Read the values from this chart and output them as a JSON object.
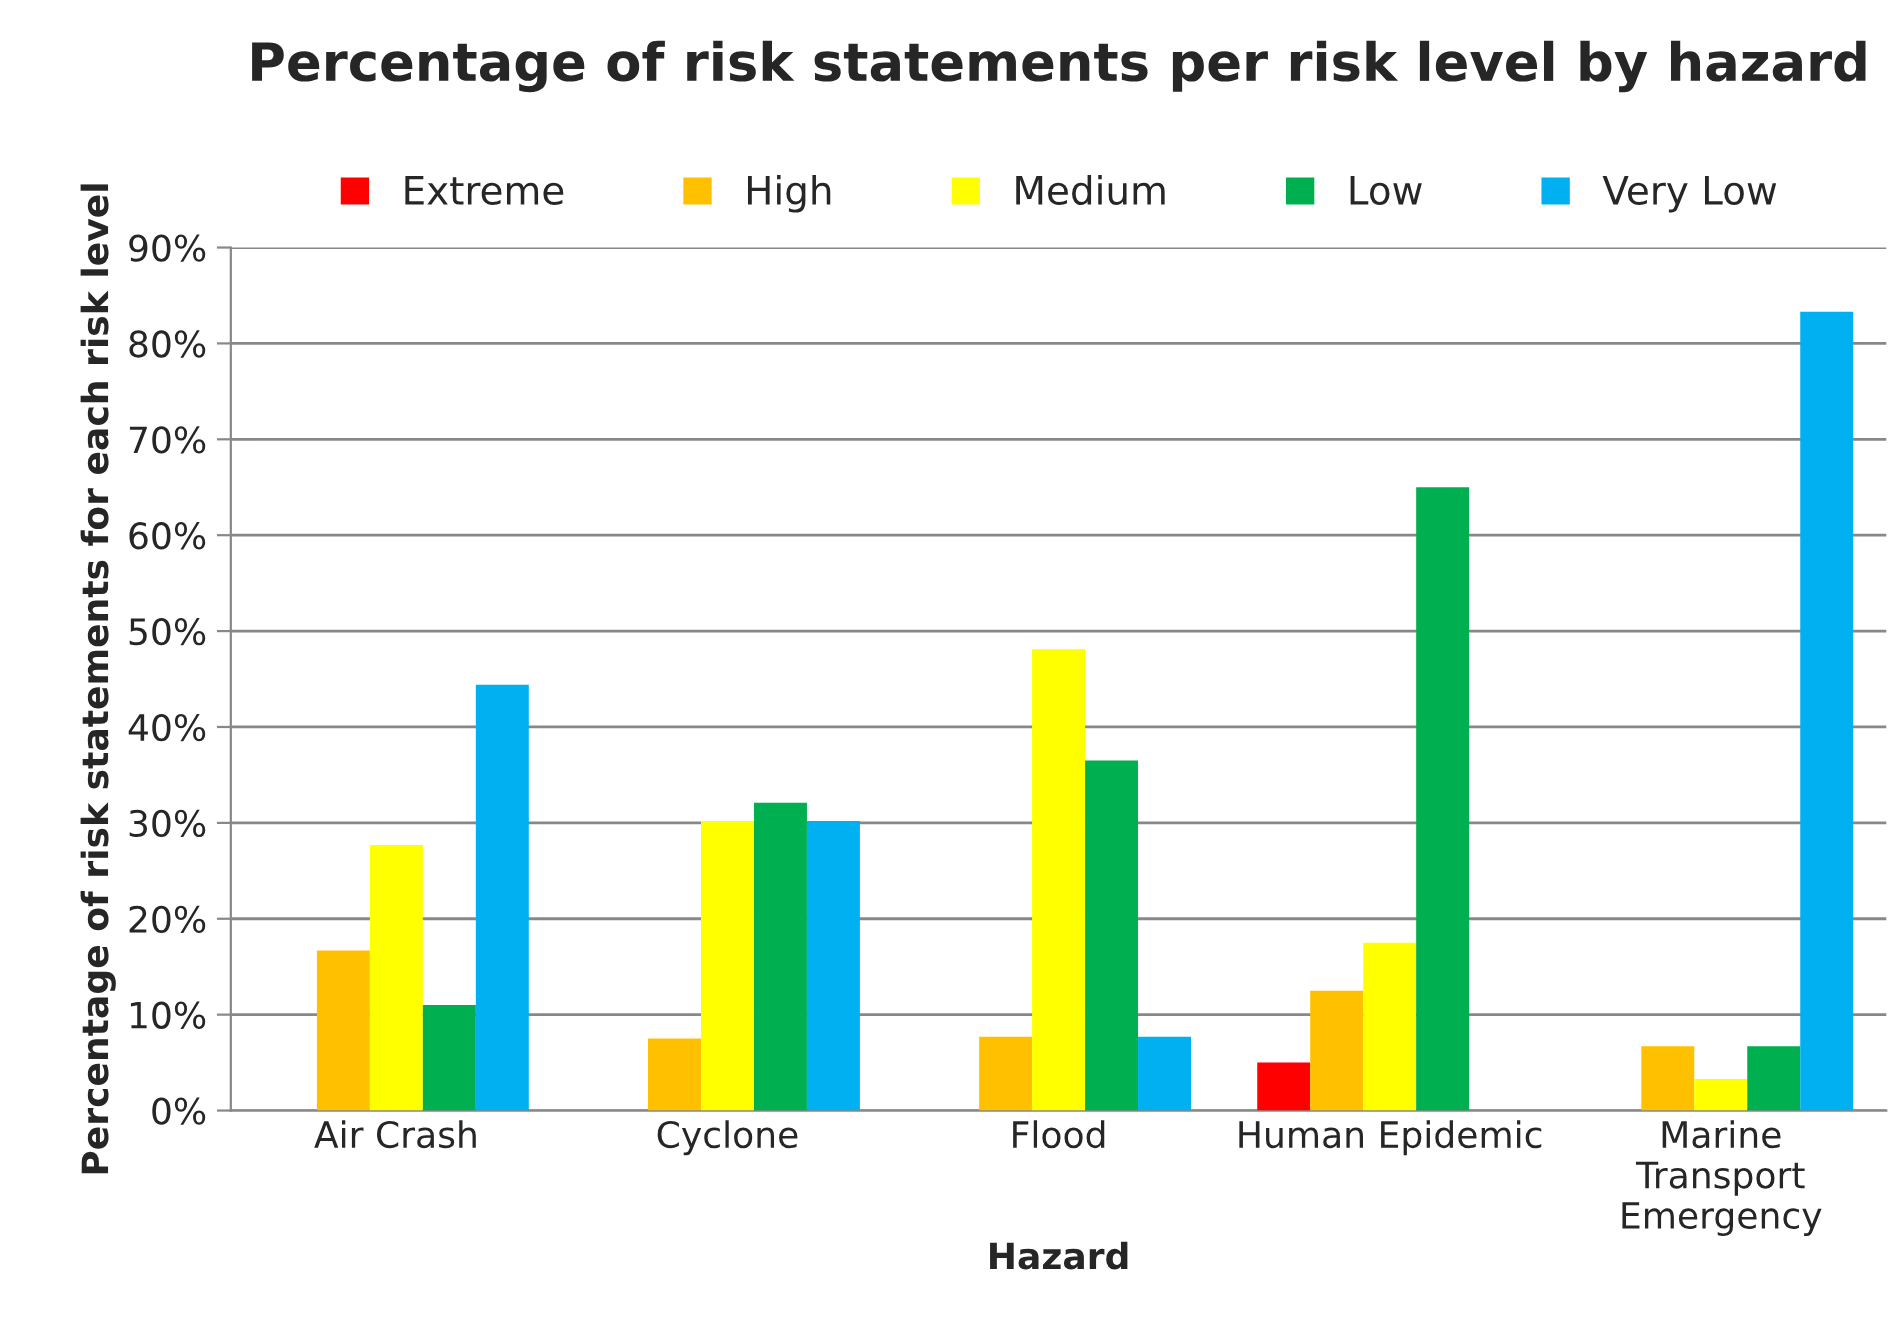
{
  "chart_data": {
    "type": "bar",
    "title": "Percentage of risk statements per risk level by hazard",
    "xlabel": "Hazard",
    "ylabel": "Percentage of risk statements for each risk level",
    "categories": [
      "Air Crash",
      "Cyclone",
      "Flood",
      "Human Epidemic",
      "Marine\nTransport\nEmergency"
    ],
    "series": [
      {
        "name": "Extreme",
        "color": "#ff0000",
        "values": [
          null,
          null,
          null,
          5.0,
          null
        ]
      },
      {
        "name": "High",
        "color": "#ffc000",
        "values": [
          16.7,
          7.5,
          7.7,
          12.5,
          6.7
        ]
      },
      {
        "name": "Medium",
        "color": "#ffff00",
        "values": [
          27.7,
          30.2,
          48.1,
          17.5,
          3.3
        ]
      },
      {
        "name": "Low",
        "color": "#00b050",
        "values": [
          11.0,
          32.1,
          36.5,
          65.0,
          6.7
        ]
      },
      {
        "name": "Very Low",
        "color": "#00b0f0",
        "values": [
          44.4,
          30.2,
          7.7,
          null,
          83.3
        ]
      }
    ],
    "ylim": [
      0,
      90
    ],
    "yticks": [
      {
        "value": 0,
        "label": "0%"
      },
      {
        "value": 10,
        "label": "10%"
      },
      {
        "value": 20,
        "label": "20%"
      },
      {
        "value": 30,
        "label": "30%"
      },
      {
        "value": 40,
        "label": "40%"
      },
      {
        "value": 50,
        "label": "50%"
      },
      {
        "value": 60,
        "label": "60%"
      },
      {
        "value": 70,
        "label": "70%"
      },
      {
        "value": 80,
        "label": "80%"
      },
      {
        "value": 90,
        "label": "90%"
      }
    ],
    "grid": "y",
    "legend": "top"
  }
}
